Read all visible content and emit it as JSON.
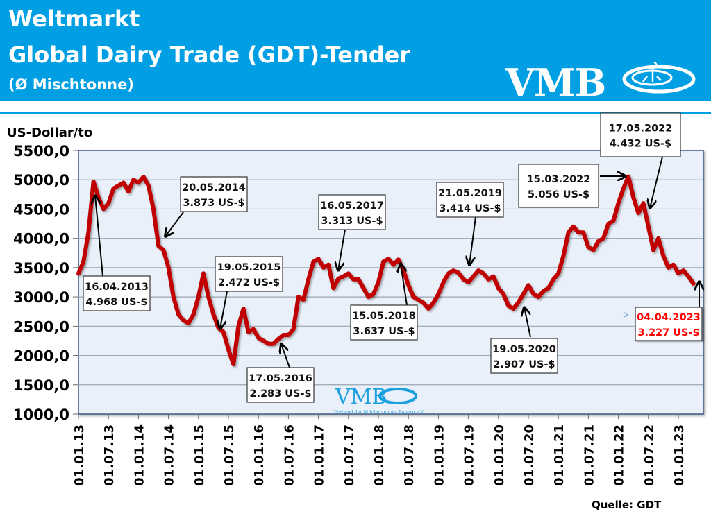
{
  "header": {
    "title_line1": "Weltmarkt",
    "title_line2": "Global Dairy Trade (GDT)-Tender",
    "subtitle": "(Ø Mischtonne)",
    "logo_text": "VMB",
    "background_color": "#009fe3"
  },
  "watermark": {
    "logo_text": "VMB",
    "tagline": "Verband der Milcherzeuger Bayern e.V."
  },
  "source": "Quelle: GDT",
  "chart_data": {
    "type": "line",
    "ylabel": "US-Dollar/to",
    "ylim": [
      1000,
      5500
    ],
    "yticks": [
      "1000,0",
      "1500,0",
      "2000,0",
      "2500,0",
      "3000,0",
      "3500,0",
      "4000,0",
      "4500,0",
      "5000,0",
      "5500,0"
    ],
    "xticks": [
      "01.01.13",
      "01.07.13",
      "01.01.14",
      "01.07.14",
      "01.01.15",
      "01.07.15",
      "01.01.16",
      "01.07.16",
      "01.01.17",
      "01.07.17",
      "01.01.18",
      "01.07.18",
      "01.01.19",
      "01.07.19",
      "01.01.20",
      "01.07.20",
      "01.01.21",
      "01.07.21",
      "01.01.22",
      "01.07.22",
      "01.01.23"
    ],
    "xlim": [
      "2013-01-01",
      "2023-05-15"
    ],
    "grid": true,
    "line_color": "#c00000",
    "plot_background": "#e9f0f9",
    "series": [
      {
        "x": [
          "2013-01",
          "2013-02",
          "2013-03",
          "2013-04",
          "2013-05",
          "2013-06",
          "2013-07",
          "2013-08",
          "2013-09",
          "2013-10",
          "2013-11",
          "2013-12",
          "2014-01",
          "2014-02",
          "2014-03",
          "2014-04",
          "2014-05",
          "2014-06",
          "2014-07",
          "2014-08",
          "2014-09",
          "2014-10",
          "2014-11",
          "2014-12",
          "2015-01",
          "2015-02",
          "2015-03",
          "2015-04",
          "2015-05",
          "2015-06",
          "2015-07",
          "2015-08",
          "2015-09",
          "2015-10",
          "2015-11",
          "2015-12",
          "2016-01",
          "2016-02",
          "2016-03",
          "2016-04",
          "2016-05",
          "2016-06",
          "2016-07",
          "2016-08",
          "2016-09",
          "2016-10",
          "2016-11",
          "2016-12",
          "2017-01",
          "2017-02",
          "2017-03",
          "2017-04",
          "2017-05",
          "2017-06",
          "2017-07",
          "2017-08",
          "2017-09",
          "2017-10",
          "2017-11",
          "2017-12",
          "2018-01",
          "2018-02",
          "2018-03",
          "2018-04",
          "2018-05",
          "2018-06",
          "2018-07",
          "2018-08",
          "2018-09",
          "2018-10",
          "2018-11",
          "2018-12",
          "2019-01",
          "2019-02",
          "2019-03",
          "2019-04",
          "2019-05",
          "2019-06",
          "2019-07",
          "2019-08",
          "2019-09",
          "2019-10",
          "2019-11",
          "2019-12",
          "2020-01",
          "2020-02",
          "2020-03",
          "2020-04",
          "2020-05",
          "2020-06",
          "2020-07",
          "2020-08",
          "2020-09",
          "2020-10",
          "2020-11",
          "2020-12",
          "2021-01",
          "2021-02",
          "2021-03",
          "2021-04",
          "2021-05",
          "2021-06",
          "2021-07",
          "2021-08",
          "2021-09",
          "2021-10",
          "2021-11",
          "2021-12",
          "2022-01",
          "2022-02",
          "2022-03",
          "2022-04",
          "2022-05",
          "2022-06",
          "2022-07",
          "2022-08",
          "2022-09",
          "2022-10",
          "2022-11",
          "2022-12",
          "2023-01",
          "2023-02",
          "2023-03",
          "2023-04"
        ],
        "y": [
          3400,
          3600,
          4100,
          4968,
          4700,
          4500,
          4600,
          4850,
          4900,
          4950,
          4800,
          5000,
          4950,
          5050,
          4900,
          4500,
          3873,
          3800,
          3500,
          3000,
          2700,
          2600,
          2550,
          2700,
          3000,
          3400,
          3000,
          2700,
          2472,
          2400,
          2100,
          1850,
          2500,
          2800,
          2400,
          2450,
          2300,
          2250,
          2200,
          2200,
          2283,
          2350,
          2350,
          2450,
          3000,
          2950,
          3300,
          3600,
          3650,
          3500,
          3550,
          3150,
          3313,
          3350,
          3400,
          3300,
          3300,
          3150,
          3000,
          3050,
          3250,
          3600,
          3650,
          3550,
          3637,
          3450,
          3200,
          3000,
          2950,
          2900,
          2800,
          2900,
          3050,
          3250,
          3400,
          3450,
          3414,
          3300,
          3250,
          3350,
          3450,
          3400,
          3300,
          3350,
          3150,
          3050,
          2850,
          2800,
          2907,
          3050,
          3200,
          3050,
          3000,
          3100,
          3150,
          3300,
          3400,
          3700,
          4100,
          4200,
          4100,
          4100,
          3850,
          3800,
          3950,
          4000,
          4250,
          4300,
          4600,
          4850,
          5056,
          4700,
          4432,
          4600,
          4200,
          3800,
          4000,
          3700,
          3500,
          3550,
          3400,
          3450,
          3350,
          3227
        ]
      }
    ],
    "annotations": [
      {
        "date": "16.04.2013",
        "value": "4.968 US-$"
      },
      {
        "date": "20.05.2014",
        "value": "3.873 US-$"
      },
      {
        "date": "19.05.2015",
        "value": "2.472 US-$"
      },
      {
        "date": "17.05.2016",
        "value": "2.283 US-$"
      },
      {
        "date": "16.05.2017",
        "value": "3.313 US-$"
      },
      {
        "date": "15.05.2018",
        "value": "3.637 US-$"
      },
      {
        "date": "21.05.2019",
        "value": "3.414 US-$"
      },
      {
        "date": "19.05.2020",
        "value": "2.907 US-$"
      },
      {
        "date": "15.03.2022",
        "value": "5.056 US-$"
      },
      {
        "date": "17.05.2022",
        "value": "4.432 US-$"
      },
      {
        "date": "04.04.2023",
        "value": "3.227 US-$",
        "color": "#ff0000"
      }
    ]
  }
}
